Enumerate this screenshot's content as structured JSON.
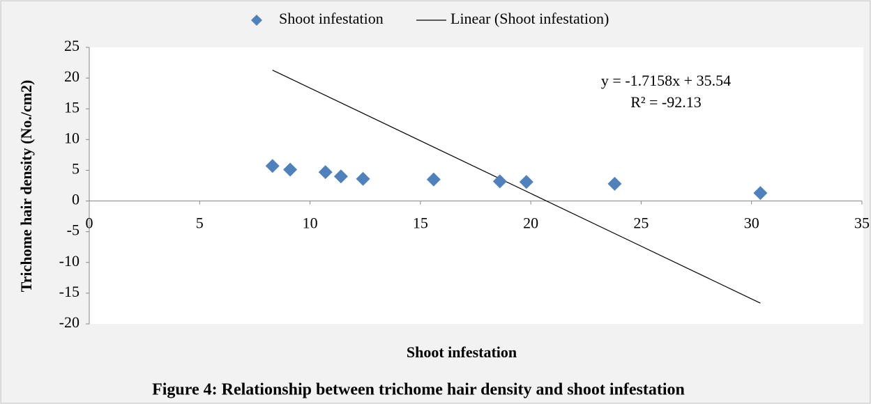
{
  "chart_data": {
    "type": "scatter",
    "caption": "Figure 4: Relationship between  trichome hair density and shoot infestation",
    "xlabel": "Shoot infestation",
    "ylabel": "Trichome hair density (No./cm2)",
    "legend": "top",
    "series": [
      {
        "name": "Shoot infestation",
        "color": "#4f81bd",
        "x": [
          8.3,
          9.1,
          10.7,
          11.4,
          12.4,
          15.6,
          18.6,
          19.8,
          23.8,
          30.4
        ],
        "values": [
          5.7,
          5.1,
          4.7,
          4.0,
          3.6,
          3.5,
          3.2,
          3.1,
          2.8,
          1.3
        ]
      }
    ],
    "trendline": {
      "name": "Linear (Shoot infestation)",
      "color": "#000000",
      "slope": -1.7158,
      "intercept": 35.54,
      "equation": "y = -1.7158x + 35.54",
      "r2": "R² = -92.13"
    },
    "xlim": [
      0,
      35
    ],
    "xticks": [
      0,
      5,
      10,
      15,
      20,
      25,
      30,
      35
    ],
    "ylim": [
      -20,
      25
    ],
    "yticks": [
      -20,
      -15,
      -10,
      -5,
      0,
      5,
      10,
      15,
      20,
      25
    ]
  }
}
